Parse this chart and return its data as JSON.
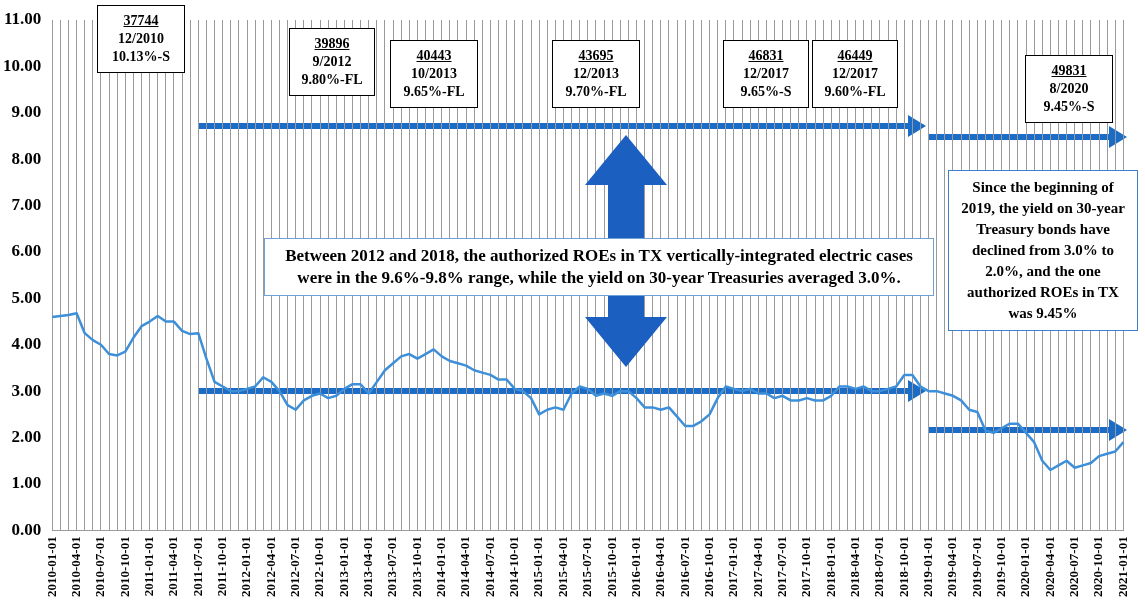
{
  "chart_data": {
    "type": "line",
    "categories": [
      "2010-01-01",
      null,
      null,
      "2010-04-01",
      null,
      null,
      "2010-07-01",
      null,
      null,
      "2010-10-01",
      null,
      null,
      "2011-01-01",
      null,
      null,
      "2011-04-01",
      null,
      null,
      "2011-07-01",
      null,
      null,
      "2011-10-01",
      null,
      null,
      "2012-01-01",
      null,
      null,
      "2012-04-01",
      null,
      null,
      "2012-07-01",
      null,
      null,
      "2012-10-01",
      null,
      null,
      "2013-01-01",
      null,
      null,
      "2013-04-01",
      null,
      null,
      "2013-07-01",
      null,
      null,
      "2013-10-01",
      null,
      null,
      "2014-01-01",
      null,
      null,
      "2014-04-01",
      null,
      null,
      "2014-07-01",
      null,
      null,
      "2014-10-01",
      null,
      null,
      "2015-01-01",
      null,
      null,
      "2015-04-01",
      null,
      null,
      "2015-07-01",
      null,
      null,
      "2015-10-01",
      null,
      null,
      "2016-01-01",
      null,
      null,
      "2016-04-01",
      null,
      null,
      "2016-07-01",
      null,
      null,
      "2016-10-01",
      null,
      null,
      "2017-01-01",
      null,
      null,
      "2017-04-01",
      null,
      null,
      "2017-07-01",
      null,
      null,
      "2017-10-01",
      null,
      null,
      "2018-01-01",
      null,
      null,
      "2018-04-01",
      null,
      null,
      "2018-07-01",
      null,
      null,
      "2018-10-01",
      null,
      null,
      "2019-01-01",
      null,
      null,
      "2019-04-01",
      null,
      null,
      "2019-07-01",
      null,
      null,
      "2019-10-01",
      null,
      null,
      "2020-01-01",
      null,
      null,
      "2020-04-01",
      null,
      null,
      "2020-07-01",
      null,
      null,
      "2020-10-01",
      null,
      null,
      "2021-01-01"
    ],
    "series": [
      {
        "color": "#3d8fd9",
        "values": [
          4.6,
          4.62,
          4.64,
          4.68,
          4.25,
          4.1,
          4.0,
          3.8,
          3.77,
          3.85,
          4.15,
          4.4,
          4.5,
          4.62,
          4.5,
          4.5,
          4.3,
          4.23,
          4.25,
          3.7,
          3.2,
          3.1,
          3.0,
          3.0,
          3.05,
          3.1,
          3.3,
          3.2,
          3.0,
          2.7,
          2.6,
          2.8,
          2.9,
          2.95,
          2.85,
          2.9,
          3.05,
          3.15,
          3.15,
          2.95,
          3.2,
          3.45,
          3.6,
          3.75,
          3.8,
          3.7,
          3.8,
          3.9,
          3.75,
          3.65,
          3.6,
          3.55,
          3.45,
          3.4,
          3.35,
          3.25,
          3.25,
          3.05,
          3.0,
          2.85,
          2.5,
          2.6,
          2.65,
          2.6,
          2.95,
          3.1,
          3.05,
          2.9,
          2.95,
          2.9,
          3.0,
          3.0,
          2.85,
          2.65,
          2.65,
          2.6,
          2.65,
          2.45,
          2.25,
          2.25,
          2.35,
          2.5,
          2.85,
          3.1,
          3.05,
          3.0,
          3.05,
          2.95,
          2.95,
          2.85,
          2.9,
          2.8,
          2.8,
          2.85,
          2.8,
          2.8,
          2.9,
          3.1,
          3.1,
          3.05,
          3.1,
          3.0,
          3.0,
          3.05,
          3.1,
          3.35,
          3.35,
          3.1,
          3.0,
          3.0,
          2.95,
          2.9,
          2.8,
          2.6,
          2.55,
          2.15,
          2.1,
          2.2,
          2.3,
          2.3,
          2.1,
          1.9,
          1.5,
          1.3,
          1.4,
          1.5,
          1.35,
          1.4,
          1.45,
          1.6,
          1.65,
          1.7,
          1.9
        ]
      }
    ],
    "ylim": [
      0,
      11
    ],
    "yticks": [
      {
        "value": 0,
        "label": "0.00"
      },
      {
        "value": 1,
        "label": "1.00"
      },
      {
        "value": 2,
        "label": "2.00"
      },
      {
        "value": 3,
        "label": "3.00"
      },
      {
        "value": 4,
        "label": "4.00"
      },
      {
        "value": 5,
        "label": "5.00"
      },
      {
        "value": 6,
        "label": "6.00"
      },
      {
        "value": 7,
        "label": "7.00"
      },
      {
        "value": 8,
        "label": "8.00"
      },
      {
        "value": 9,
        "label": "9.00"
      },
      {
        "value": 10,
        "label": "10.00"
      },
      {
        "value": 11,
        "label": "11.00"
      }
    ],
    "grid": "x",
    "annotations": [
      "37744\n12/2010\n10.13%-S",
      "39896\n9/2012\n9.80%-FL",
      "40443\n10/2013\n9.65%-FL",
      "43695\n12/2013\n9.70%-FL",
      "46831\n12/2017\n9.65%-S",
      "46449\n12/2017\n9.60%-FL",
      "49831\n8/2020\n9.45%-S",
      "Between 2012 and 2018, the authorized ROEs in TX vertically-integrated electric cases were in the 9.6%-9.8% range, while the yield on 30-year Treasuries averaged 3.0%.",
      "Since the beginning of 2019, the yield on 30-year Treasury bonds have declined from 3.0% to 2.0%, and the one authorized ROEs in TX was 9.45%"
    ]
  }
}
